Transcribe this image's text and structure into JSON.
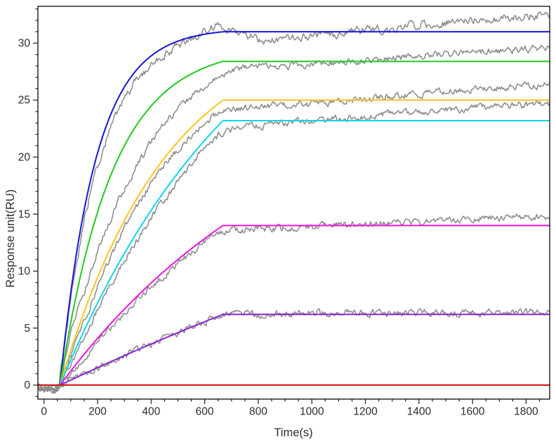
{
  "page": {
    "background": "#ffffff",
    "title": ""
  },
  "chart_data": {
    "type": "line",
    "title": "",
    "xlabel": "Time(s)",
    "ylabel": "Response unit(RU)",
    "xlim": [
      -22.8,
      1888
    ],
    "ylim": [
      -1.23,
      33.23
    ],
    "grid": "off",
    "legend": "none",
    "x_axis": {
      "major_ticks": [
        0,
        200,
        400,
        600,
        800,
        1000,
        1200,
        1400,
        1600,
        1800
      ],
      "tick_labels": [
        "0",
        "200",
        "400",
        "600",
        "800",
        "1000",
        "1200",
        "1400",
        "1600",
        "1800"
      ],
      "minor_step": 50,
      "minor_range": [
        0,
        1850
      ]
    },
    "y_axis": {
      "major_ticks": [
        0,
        5,
        10,
        15,
        20,
        25,
        30
      ],
      "tick_labels": [
        "0",
        "5",
        "10",
        "15",
        "20",
        "25",
        "30"
      ],
      "minor_step": 1,
      "minor_range": [
        -1,
        33
      ]
    },
    "injection_start_s": 60,
    "association_end_s": 668,
    "post_association_behavior": "constant at plateau to end of axis",
    "fitted_series": [
      {
        "name": "fit-curve-1-blue",
        "color": "#1515d6",
        "plateau": 31.0,
        "k_obs": 0.0075,
        "sample_points": {
          "t": [
            60,
            100,
            150,
            200,
            250,
            300,
            350,
            400,
            450,
            500,
            550,
            600,
            650,
            668,
            1888
          ],
          "ru": [
            0,
            8.1,
            15.4,
            20.4,
            23.8,
            26.2,
            27.8,
            28.9,
            29.7,
            30.2,
            30.5,
            30.8,
            31.0,
            31.0,
            31.0
          ]
        }
      },
      {
        "name": "fit-curve-2-green",
        "color": "#1ecc1e",
        "plateau": 28.4,
        "k_obs": 0.0051,
        "sample_points": {
          "t": [
            60,
            100,
            150,
            200,
            250,
            300,
            350,
            400,
            450,
            500,
            550,
            600,
            650,
            668,
            1888
          ],
          "ru": [
            0,
            5.5,
            11.0,
            15.2,
            18.5,
            21.0,
            23.0,
            24.5,
            25.7,
            26.6,
            27.3,
            27.8,
            28.3,
            28.4,
            28.4
          ]
        }
      },
      {
        "name": "fit-curve-3-yellow",
        "color": "#ffc41e",
        "plateau": 25.0,
        "k_obs": 0.0025,
        "sample_points": {
          "t": [
            60,
            100,
            150,
            200,
            250,
            300,
            350,
            400,
            450,
            500,
            550,
            600,
            650,
            668,
            1888
          ],
          "ru": [
            0,
            3.1,
            6.5,
            9.5,
            12.1,
            14.4,
            16.5,
            18.3,
            19.9,
            21.4,
            22.6,
            23.7,
            24.7,
            25.0,
            25.0
          ]
        }
      },
      {
        "name": "fit-curve-4-cyan",
        "color": "#0cd6ec",
        "plateau": 23.2,
        "k_obs": 0.0014,
        "sample_points": {
          "t": [
            60,
            100,
            150,
            200,
            250,
            300,
            350,
            400,
            450,
            500,
            550,
            600,
            650,
            668,
            1888
          ],
          "ru": [
            0,
            2.2,
            4.8,
            7.2,
            9.4,
            11.6,
            13.5,
            15.3,
            17.0,
            18.6,
            20.1,
            21.5,
            22.8,
            23.2,
            23.2
          ]
        }
      },
      {
        "name": "fit-curve-5-magenta",
        "color": "#ec13e0",
        "plateau": 14.0,
        "k_obs": 0.0011,
        "sample_points": {
          "t": [
            60,
            100,
            150,
            200,
            250,
            300,
            350,
            400,
            450,
            500,
            550,
            600,
            650,
            668,
            1888
          ],
          "ru": [
            0,
            1.2,
            2.7,
            4.1,
            5.4,
            6.7,
            7.8,
            9.0,
            10.0,
            11.0,
            12.0,
            12.9,
            13.7,
            14.0,
            14.0
          ]
        }
      },
      {
        "name": "fit-curve-6-purple",
        "color": "#8a25d3",
        "plateau": 6.2,
        "k_obs": 0.0003,
        "sample_points": {
          "t": [
            60,
            100,
            150,
            200,
            250,
            300,
            350,
            400,
            450,
            500,
            550,
            600,
            650,
            668,
            1888
          ],
          "ru": [
            0,
            0.4,
            1.0,
            1.5,
            2.1,
            2.6,
            3.1,
            3.6,
            4.1,
            4.6,
            5.1,
            5.6,
            6.1,
            6.2,
            6.2
          ]
        }
      },
      {
        "name": "fit-curve-7-red-baseline",
        "color": "#d41414",
        "plateau": 0,
        "k_obs": 0.001,
        "sample_points": {
          "t": [
            -22,
            1888
          ],
          "ru": [
            0,
            0
          ]
        }
      }
    ],
    "raw_series": [
      {
        "name": "raw-trace-1-blue-analyte",
        "color": "#8f8f8f",
        "anchors": [
          [
            -20,
            -0.15
          ],
          [
            40,
            -0.35
          ],
          [
            55,
            -0.1
          ],
          [
            100,
            7.6
          ],
          [
            150,
            14.6
          ],
          [
            200,
            19.3
          ],
          [
            250,
            22.7
          ],
          [
            300,
            25.2
          ],
          [
            350,
            26.9
          ],
          [
            400,
            28.1
          ],
          [
            450,
            29.0
          ],
          [
            500,
            29.7
          ],
          [
            550,
            30.4
          ],
          [
            600,
            31.0
          ],
          [
            630,
            31.4
          ],
          [
            660,
            31.5
          ],
          [
            700,
            31.1
          ],
          [
            760,
            30.6
          ],
          [
            820,
            30.3
          ],
          [
            900,
            30.35
          ],
          [
            1000,
            30.6
          ],
          [
            1100,
            30.85
          ],
          [
            1200,
            31.1
          ],
          [
            1300,
            31.3
          ],
          [
            1400,
            31.6
          ],
          [
            1500,
            31.8
          ],
          [
            1600,
            32.0
          ],
          [
            1700,
            32.2
          ],
          [
            1800,
            32.35
          ],
          [
            1888,
            32.5
          ]
        ]
      },
      {
        "name": "raw-trace-2-green-analyte",
        "color": "#8f8f8f",
        "anchors": [
          [
            -20,
            -0.3
          ],
          [
            40,
            -0.5
          ],
          [
            55,
            -0.2
          ],
          [
            100,
            4.6
          ],
          [
            150,
            8.2
          ],
          [
            200,
            11.6
          ],
          [
            250,
            14.6
          ],
          [
            300,
            17.2
          ],
          [
            350,
            19.4
          ],
          [
            400,
            21.3
          ],
          [
            450,
            22.9
          ],
          [
            500,
            24.2
          ],
          [
            550,
            25.3
          ],
          [
            600,
            26.2
          ],
          [
            650,
            26.9
          ],
          [
            680,
            27.4
          ],
          [
            720,
            27.7
          ],
          [
            800,
            27.9
          ],
          [
            900,
            28.0
          ],
          [
            1000,
            28.15
          ],
          [
            1100,
            28.3
          ],
          [
            1200,
            28.5
          ],
          [
            1300,
            28.65
          ],
          [
            1400,
            28.85
          ],
          [
            1500,
            29.0
          ],
          [
            1600,
            29.2
          ],
          [
            1700,
            29.35
          ],
          [
            1800,
            29.5
          ],
          [
            1888,
            29.6
          ]
        ]
      },
      {
        "name": "raw-trace-3-yellow-analyte",
        "color": "#8f8f8f",
        "anchors": [
          [
            -20,
            -0.2
          ],
          [
            40,
            -0.4
          ],
          [
            55,
            -0.1
          ],
          [
            100,
            2.6
          ],
          [
            150,
            5.6
          ],
          [
            200,
            8.6
          ],
          [
            250,
            11.3
          ],
          [
            300,
            13.7
          ],
          [
            350,
            15.8
          ],
          [
            400,
            17.7
          ],
          [
            450,
            19.3
          ],
          [
            500,
            20.7
          ],
          [
            550,
            21.9
          ],
          [
            600,
            23.0
          ],
          [
            650,
            23.9
          ],
          [
            680,
            24.2
          ],
          [
            750,
            24.3
          ],
          [
            850,
            24.45
          ],
          [
            950,
            24.6
          ],
          [
            1050,
            24.8
          ],
          [
            1150,
            25.0
          ],
          [
            1250,
            25.2
          ],
          [
            1350,
            25.45
          ],
          [
            1450,
            25.65
          ],
          [
            1550,
            25.85
          ],
          [
            1650,
            26.0
          ],
          [
            1750,
            26.15
          ],
          [
            1888,
            26.3
          ]
        ]
      },
      {
        "name": "raw-trace-4-cyan-analyte",
        "color": "#8f8f8f",
        "anchors": [
          [
            -20,
            -0.25
          ],
          [
            40,
            -0.45
          ],
          [
            55,
            -0.15
          ],
          [
            100,
            1.9
          ],
          [
            150,
            4.2
          ],
          [
            200,
            6.6
          ],
          [
            250,
            8.8
          ],
          [
            300,
            10.9
          ],
          [
            350,
            12.8
          ],
          [
            400,
            14.6
          ],
          [
            450,
            16.3
          ],
          [
            500,
            17.9
          ],
          [
            550,
            19.4
          ],
          [
            600,
            20.8
          ],
          [
            650,
            21.9
          ],
          [
            680,
            22.3
          ],
          [
            750,
            22.6
          ],
          [
            850,
            22.85
          ],
          [
            950,
            23.05
          ],
          [
            1050,
            23.25
          ],
          [
            1150,
            23.45
          ],
          [
            1250,
            23.65
          ],
          [
            1350,
            23.85
          ],
          [
            1450,
            24.05
          ],
          [
            1550,
            24.2
          ],
          [
            1650,
            24.35
          ],
          [
            1750,
            24.5
          ],
          [
            1888,
            24.6
          ]
        ]
      },
      {
        "name": "raw-trace-5-magenta-analyte",
        "color": "#8f8f8f",
        "anchors": [
          [
            -20,
            -0.2
          ],
          [
            40,
            -0.4
          ],
          [
            55,
            -0.1
          ],
          [
            100,
            1.0
          ],
          [
            200,
            3.8
          ],
          [
            300,
            6.3
          ],
          [
            400,
            8.6
          ],
          [
            500,
            10.7
          ],
          [
            600,
            12.5
          ],
          [
            650,
            13.3
          ],
          [
            680,
            13.55
          ],
          [
            780,
            13.7
          ],
          [
            880,
            13.8
          ],
          [
            980,
            13.9
          ],
          [
            1080,
            14.0
          ],
          [
            1180,
            14.1
          ],
          [
            1280,
            14.25
          ],
          [
            1380,
            14.35
          ],
          [
            1480,
            14.45
          ],
          [
            1580,
            14.55
          ],
          [
            1680,
            14.65
          ],
          [
            1780,
            14.72
          ],
          [
            1888,
            14.8
          ]
        ]
      },
      {
        "name": "raw-trace-6-purple-analyte",
        "color": "#8f8f8f",
        "anchors": [
          [
            -20,
            -0.15
          ],
          [
            40,
            -0.3
          ],
          [
            55,
            -0.05
          ],
          [
            100,
            0.45
          ],
          [
            200,
            1.5
          ],
          [
            300,
            2.55
          ],
          [
            400,
            3.6
          ],
          [
            500,
            4.6
          ],
          [
            600,
            5.55
          ],
          [
            650,
            6.0
          ],
          [
            680,
            6.25
          ],
          [
            800,
            6.25
          ],
          [
            1000,
            6.3
          ],
          [
            1200,
            6.3
          ],
          [
            1400,
            6.3
          ],
          [
            1600,
            6.35
          ],
          [
            1888,
            6.4
          ]
        ]
      }
    ],
    "styles": {
      "raw_color": "#8f8f8f",
      "axis_color": "#1c1c1c",
      "background": "#ffffff"
    }
  }
}
